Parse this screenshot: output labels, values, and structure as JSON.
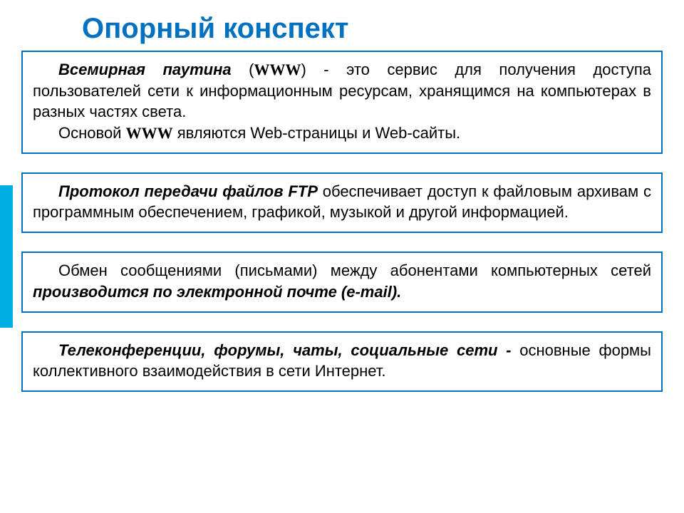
{
  "colors": {
    "accent": "#0070c0",
    "side": "#00aee6",
    "text": "#000000",
    "bg": "#ffffff"
  },
  "title": "Опорный конспект",
  "box1": {
    "lead_bold": "Всемирная паутина",
    "paren_open": " (",
    "www1": "WWW",
    "after_paren": ") - это сервис для получения доступа пользователей сети к информационным ресурсам, хранящимся на компьютерах в разных частях света.",
    "line2_pre": "Основой ",
    "www2": "WWW",
    "line2_post": " являются Web-страницы и Web-сайты."
  },
  "box2": {
    "lead_bold": "Протокол передачи файлов FTP",
    "rest": " обеспечивает доступ к файловым архивам с программным обеспечением, графикой, музыкой и другой информацией."
  },
  "box3": {
    "pre": "Обмен сообщениями (письмами) между абонентами компьютерных сетей ",
    "bold_ital": "производится по электронной почте (e-mail)."
  },
  "box4": {
    "lead_bold": "Телеконференции, форумы, чаты, социальные сети -",
    "rest": " основные формы коллективного взаимодействия в сети Интернет."
  },
  "typography": {
    "title_fontsize": 40,
    "body_fontsize": 22,
    "border_width": 2.5
  }
}
